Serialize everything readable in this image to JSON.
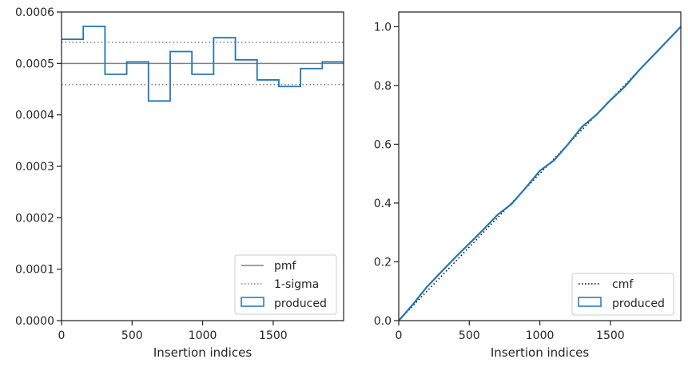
{
  "chart_data": [
    {
      "type": "line",
      "xlabel": "Insertion indices",
      "ylabel": "",
      "xlim": [
        0,
        1999
      ],
      "ylim": [
        0,
        0.0006
      ],
      "xticks": [
        0,
        500,
        1000,
        1500
      ],
      "xtick_labels": [
        "0",
        "500",
        "1000",
        "1500"
      ],
      "yticks": [
        0,
        0.0001,
        0.0002,
        0.0003,
        0.0004,
        0.0005,
        0.0006
      ],
      "ytick_labels": [
        "0.0000",
        "0.0001",
        "0.0002",
        "0.0003",
        "0.0004",
        "0.0005",
        "0.0006"
      ],
      "grid": false,
      "legend_position": "lower right",
      "series": [
        {
          "name": "pmf",
          "style": "solid",
          "color": "#808080",
          "values": [
            0.0005
          ]
        },
        {
          "name": "1-sigma",
          "style": "dotted",
          "color": "#808080",
          "values": [
            0.000459,
            0.000541
          ]
        },
        {
          "name": "produced",
          "style": "step",
          "color": "#1f77b4",
          "bin_edges": [
            0,
            154,
            308,
            462,
            616,
            770,
            924,
            1078,
            1232,
            1386,
            1540,
            1694,
            1848,
            1999
          ],
          "values": [
            0.000547,
            0.000572,
            0.000479,
            0.000503,
            0.000427,
            0.000523,
            0.000479,
            0.00055,
            0.000507,
            0.000468,
            0.000455,
            0.00049,
            0.000503
          ]
        }
      ]
    },
    {
      "type": "line",
      "xlabel": "Insertion indices",
      "ylabel": "",
      "xlim": [
        0,
        1999
      ],
      "ylim": [
        0,
        1.05
      ],
      "xticks": [
        0,
        500,
        1000,
        1500
      ],
      "xtick_labels": [
        "0",
        "500",
        "1000",
        "1500"
      ],
      "yticks": [
        0,
        0.2,
        0.4,
        0.6,
        0.8,
        1.0
      ],
      "ytick_labels": [
        "0.0",
        "0.2",
        "0.4",
        "0.6",
        "0.8",
        "1.0"
      ],
      "grid": false,
      "legend_position": "lower right",
      "series": [
        {
          "name": "cmf",
          "style": "dotted",
          "color": "#000000",
          "x": [
            0,
            1999
          ],
          "values": [
            0,
            1.0
          ]
        },
        {
          "name": "produced",
          "style": "line",
          "color": "#1f77b4",
          "x": [
            0,
            100,
            200,
            300,
            400,
            500,
            600,
            700,
            800,
            900,
            1000,
            1100,
            1200,
            1300,
            1400,
            1500,
            1600,
            1700,
            1800,
            1900,
            1999
          ],
          "values": [
            0,
            0.055,
            0.115,
            0.165,
            0.215,
            0.262,
            0.31,
            0.36,
            0.397,
            0.452,
            0.51,
            0.545,
            0.6,
            0.66,
            0.7,
            0.75,
            0.795,
            0.85,
            0.9,
            0.95,
            1.0
          ]
        }
      ]
    }
  ]
}
